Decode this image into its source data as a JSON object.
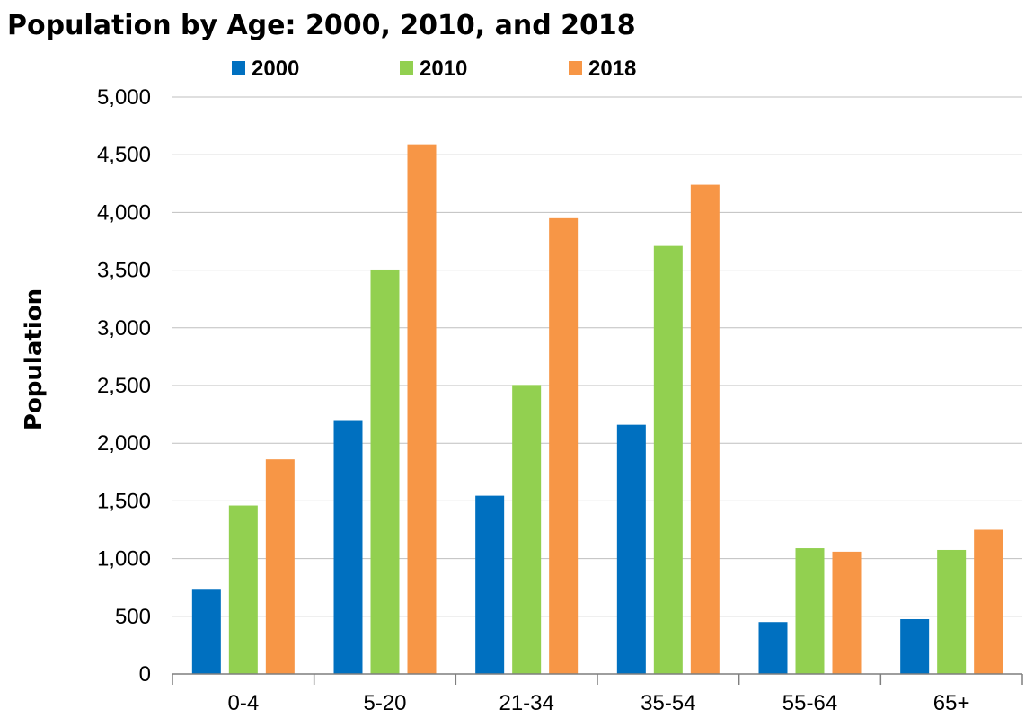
{
  "chart_data": {
    "type": "bar",
    "title": "Population by Age: 2000, 2010, and 2018",
    "xlabel": "",
    "ylabel": "Population",
    "ylim": [
      0,
      5000
    ],
    "yticks": [
      0,
      500,
      1000,
      1500,
      2000,
      2500,
      3000,
      3500,
      4000,
      4500,
      5000
    ],
    "ytick_labels": [
      "0",
      "500",
      "1,000",
      "1,500",
      "2,000",
      "2,500",
      "3,000",
      "3,500",
      "4,000",
      "4,500",
      "5,000"
    ],
    "categories": [
      "0-4",
      "5-20",
      "21-34",
      "35-54",
      "55-64",
      "65+"
    ],
    "series": [
      {
        "name": "2000",
        "color": "#0070C0",
        "values": [
          730,
          2200,
          1545,
          2160,
          450,
          475
        ]
      },
      {
        "name": "2010",
        "color": "#92D050",
        "values": [
          1460,
          3505,
          2505,
          3710,
          1090,
          1075
        ]
      },
      {
        "name": "2018",
        "color": "#F79646",
        "values": [
          1860,
          4590,
          3950,
          4240,
          1060,
          1250
        ]
      }
    ],
    "grid": true,
    "legend_position": "top"
  }
}
